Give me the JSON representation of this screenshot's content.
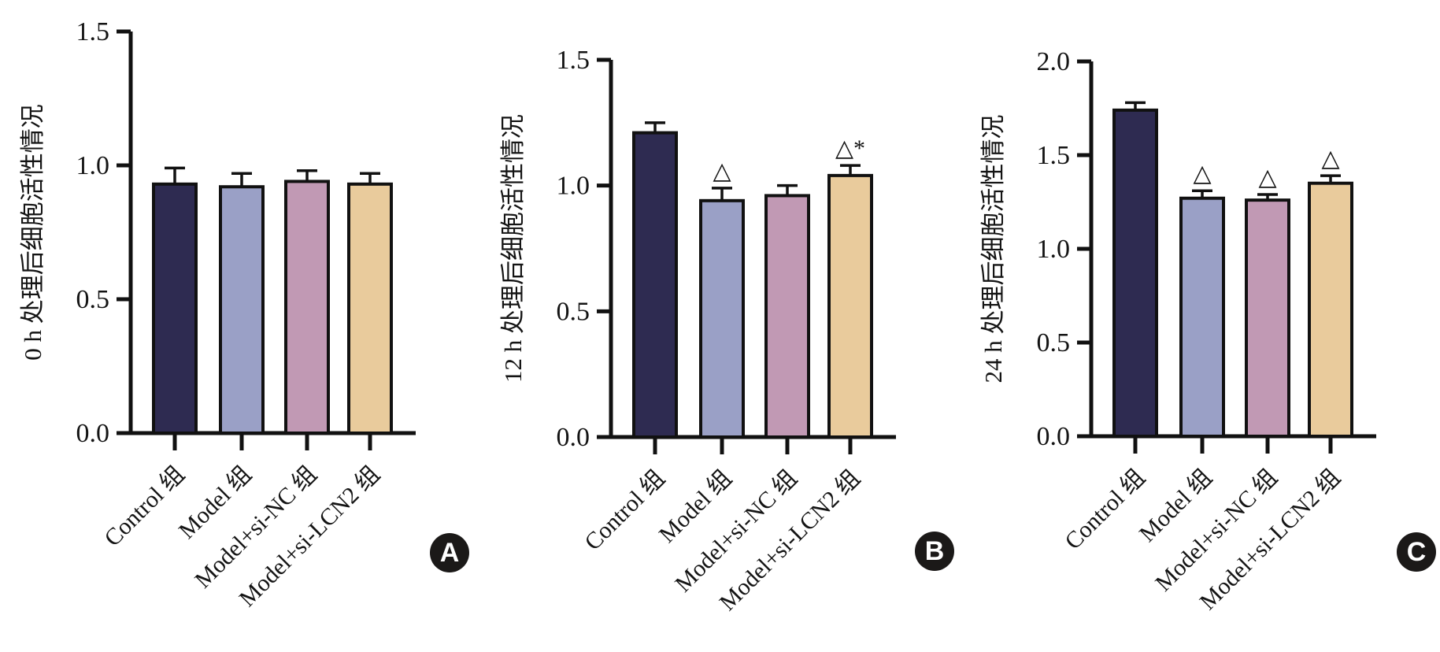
{
  "figure": {
    "background": "#FFFFFF",
    "badge_bg": "#1B1918",
    "badge_text_color": "#FFFFFF"
  },
  "chart_data": [
    {
      "type": "bar",
      "panel_label": "A",
      "ylabel": "0 h 处理后细胞活性情况",
      "xlabel": "",
      "categories": [
        "Control 组",
        "Model 组",
        "Model+si-NC 组",
        "Model+si-LCN2 组"
      ],
      "values": [
        0.93,
        0.92,
        0.94,
        0.93
      ],
      "errors": [
        0.06,
        0.05,
        0.04,
        0.04
      ],
      "annotations": [
        "",
        "",
        "",
        ""
      ],
      "bar_colors": [
        "#2E2B51",
        "#9AA0C6",
        "#C199B4",
        "#E9CB9C"
      ],
      "axis_color": "#111111",
      "ylim": [
        0,
        1.5
      ],
      "yticks": [
        0.0,
        0.5,
        1.0,
        1.5
      ],
      "grid": false,
      "legend": null
    },
    {
      "type": "bar",
      "panel_label": "B",
      "ylabel": "12 h 处理后细胞活性情况",
      "xlabel": "",
      "categories": [
        "Control 组",
        "Model 组",
        "Model+si-NC 组",
        "Model+si-LCN2 组"
      ],
      "values": [
        1.21,
        0.94,
        0.96,
        1.04
      ],
      "errors": [
        0.04,
        0.05,
        0.04,
        0.04
      ],
      "annotations": [
        "",
        "△",
        "",
        "△*"
      ],
      "bar_colors": [
        "#2E2B51",
        "#9AA0C6",
        "#C199B4",
        "#E9CB9C"
      ],
      "axis_color": "#111111",
      "ylim": [
        0,
        1.5
      ],
      "yticks": [
        0.0,
        0.5,
        1.0,
        1.5
      ],
      "grid": false,
      "legend": null
    },
    {
      "type": "bar",
      "panel_label": "C",
      "ylabel": "24 h 处理后细胞活性情况",
      "xlabel": "",
      "categories": [
        "Control 组",
        "Model 组",
        "Model+si-NC 组",
        "Model+si-LCN2 组"
      ],
      "values": [
        1.74,
        1.27,
        1.26,
        1.35
      ],
      "errors": [
        0.04,
        0.04,
        0.03,
        0.04
      ],
      "annotations": [
        "",
        "△",
        "△",
        "△"
      ],
      "bar_colors": [
        "#2E2B51",
        "#9AA0C6",
        "#C199B4",
        "#E9CB9C"
      ],
      "axis_color": "#111111",
      "ylim": [
        0,
        2.0
      ],
      "yticks": [
        0.0,
        0.5,
        1.0,
        1.5,
        2.0
      ],
      "grid": false,
      "legend": null
    }
  ]
}
